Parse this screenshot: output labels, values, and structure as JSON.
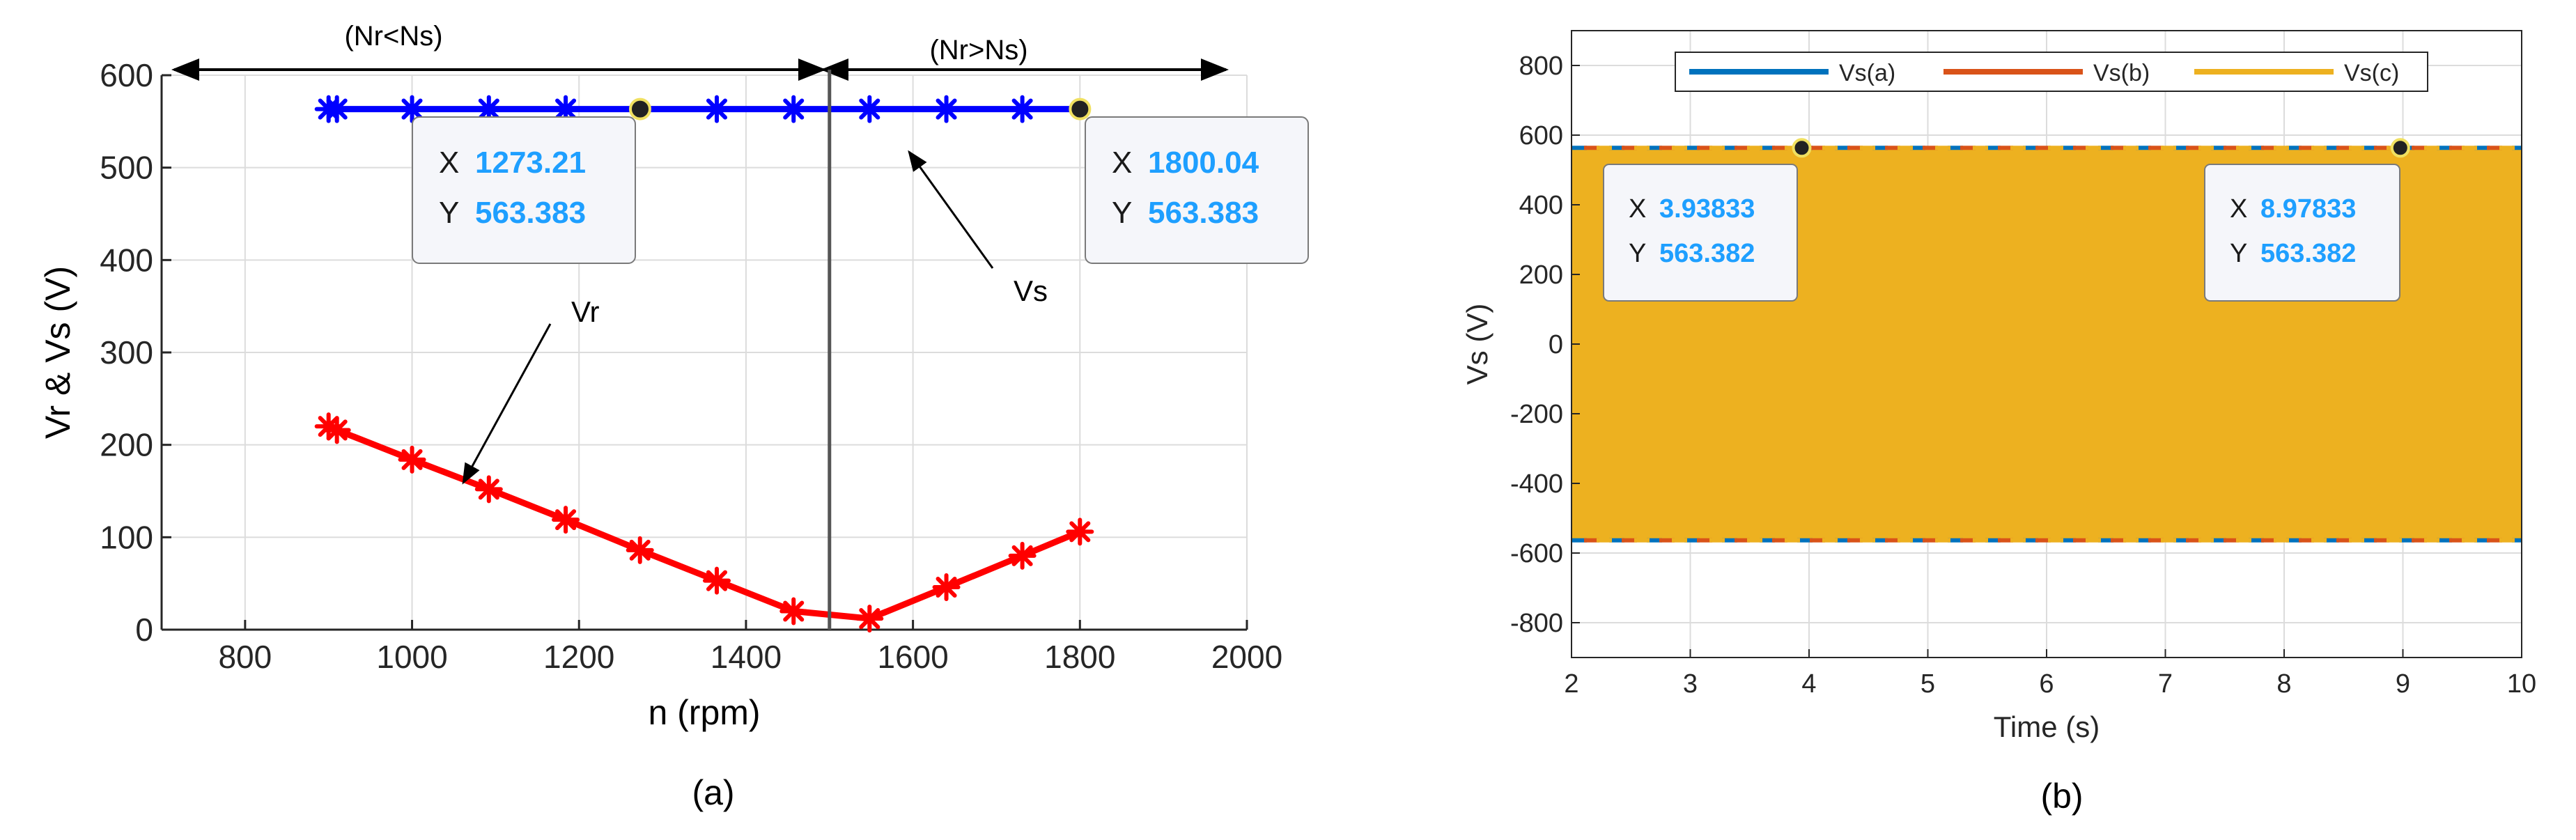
{
  "chart_data": [
    {
      "type": "line",
      "panel_caption": "(a)",
      "xlabel": "n (rpm)",
      "ylabel": "Vr & Vs (V)",
      "xlim": [
        700,
        2000
      ],
      "ylim": [
        0,
        600
      ],
      "xticks": [
        800,
        1000,
        1200,
        1400,
        1600,
        1800,
        2000
      ],
      "yticks": [
        0,
        100,
        200,
        300,
        400,
        500,
        600
      ],
      "grid": true,
      "sync_speed": 1500,
      "series": [
        {
          "name": "Vs",
          "color": "#0000ff",
          "x": [
            900,
            910,
            1000,
            1092,
            1184,
            1273.21,
            1365,
            1457,
            1548,
            1640,
            1731,
            1800.04
          ],
          "y": [
            563.383,
            563.383,
            563.383,
            563.383,
            563.383,
            563.383,
            563.383,
            563.383,
            563.383,
            563.383,
            563.383,
            563.383
          ],
          "marked": [
            true,
            true,
            true,
            true,
            true,
            false,
            true,
            true,
            true,
            true,
            true,
            false
          ]
        },
        {
          "name": "Vr",
          "color": "#ff0000",
          "x": [
            900,
            910,
            1000,
            1092,
            1184,
            1273,
            1365,
            1457,
            1548,
            1640,
            1731,
            1800
          ],
          "y": [
            220,
            216,
            184,
            152,
            119,
            86,
            53,
            20,
            12,
            46,
            80,
            106
          ],
          "marked": [
            true,
            true,
            true,
            true,
            true,
            true,
            true,
            true,
            true,
            true,
            true,
            true
          ]
        }
      ],
      "region_labels": {
        "left": "(Nr<Ns)",
        "right": "(Nr>Ns)"
      },
      "annotations": [
        {
          "text": "Vr",
          "target": [
            1065,
            155
          ],
          "label_at": [
            1390,
            340
          ]
        },
        {
          "text": "Vs",
          "target": [
            1565,
            530
          ],
          "label_at": [
            1705,
            363
          ]
        }
      ],
      "datatips": [
        {
          "x_label": "X",
          "y_label": "Y",
          "x_value": "1273.21",
          "y_value": "563.383",
          "point": [
            1273.21,
            563.383
          ]
        },
        {
          "x_label": "X",
          "y_label": "Y",
          "x_value": "1800.04",
          "y_value": "563.383",
          "point": [
            1800.04,
            563.383
          ]
        }
      ]
    },
    {
      "type": "area",
      "panel_caption": "(b)",
      "xlabel": "Time (s)",
      "ylabel": "Vs (V)",
      "xlim": [
        2,
        10
      ],
      "ylim": [
        -900,
        900
      ],
      "xticks": [
        2,
        3,
        4,
        5,
        6,
        7,
        8,
        9,
        10
      ],
      "yticks": [
        -800,
        -600,
        -400,
        -200,
        0,
        200,
        400,
        600,
        800
      ],
      "grid": true,
      "amplitude": 563.382,
      "legend_position": "top",
      "series": [
        {
          "name": "Vs(a)",
          "color": "#0072bd"
        },
        {
          "name": "Vs(b)",
          "color": "#d95319"
        },
        {
          "name": "Vs(c)",
          "color": "#edb120"
        }
      ],
      "datatips": [
        {
          "x_label": "X",
          "y_label": "Y",
          "x_value": "3.93833",
          "y_value": "563.382",
          "point": [
            3.93833,
            563.382
          ]
        },
        {
          "x_label": "X",
          "y_label": "Y",
          "x_value": "8.97833",
          "y_value": "563.382",
          "point": [
            8.97833,
            563.382
          ]
        }
      ]
    }
  ]
}
